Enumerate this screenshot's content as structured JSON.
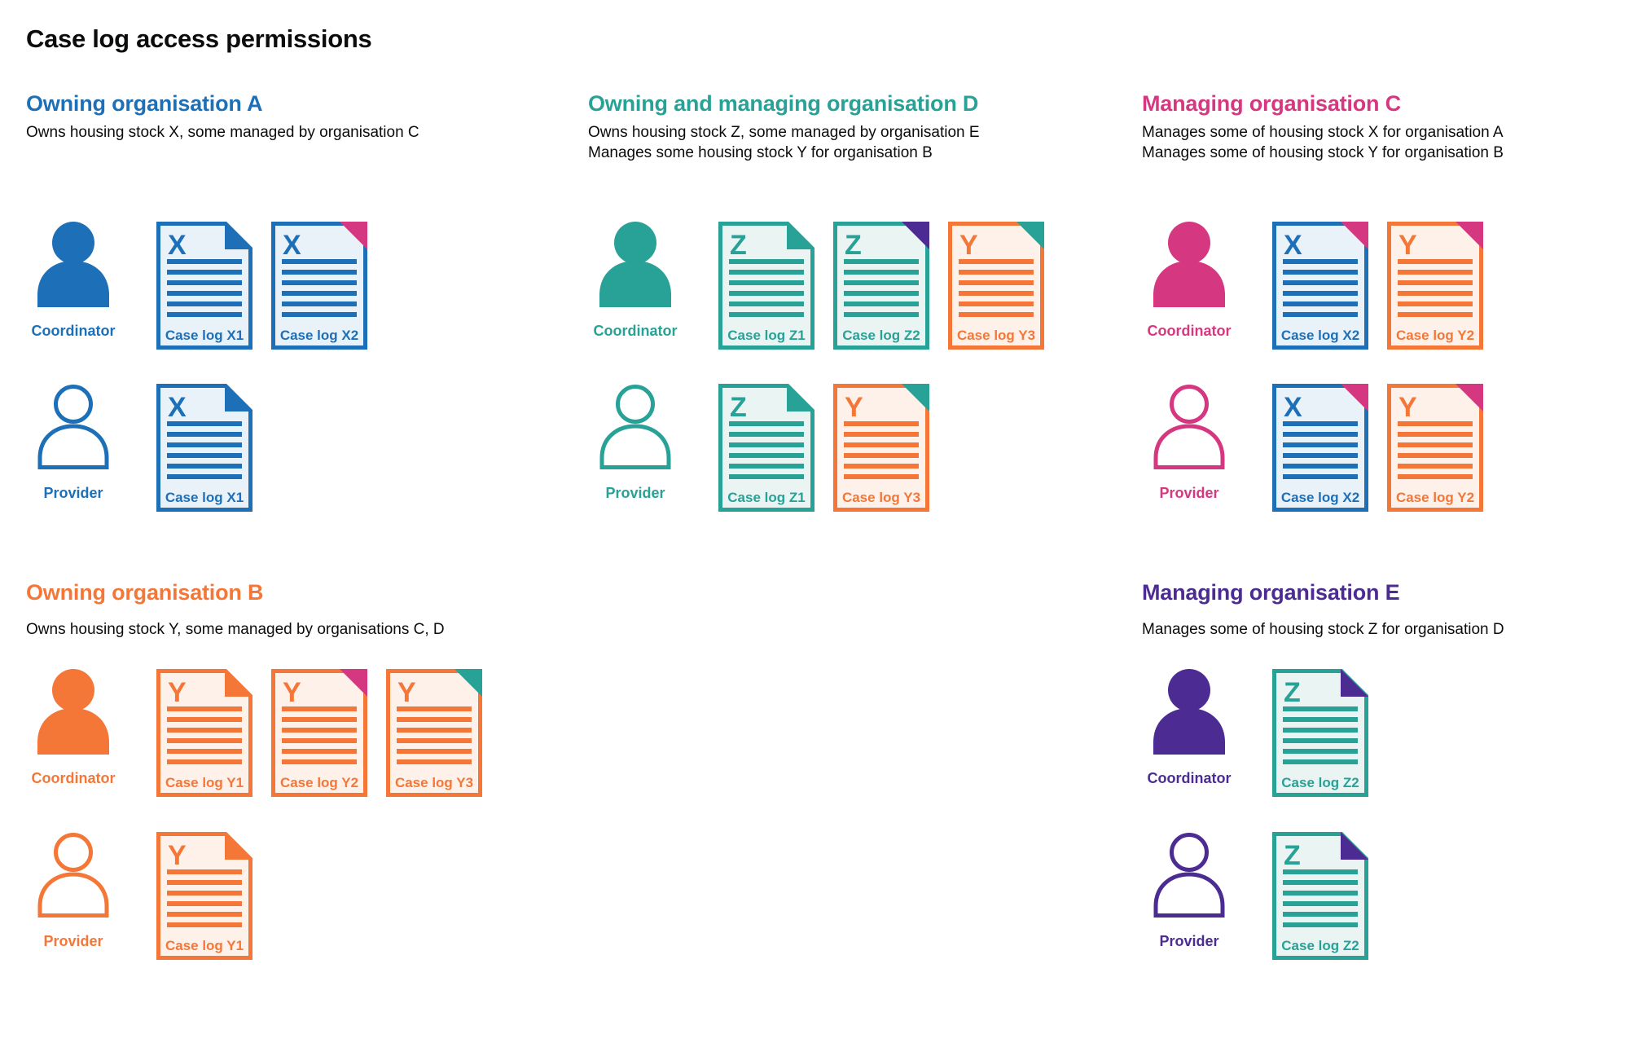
{
  "page": {
    "title": "Case log access permissions"
  },
  "colors": {
    "blue": "#1d70b8",
    "teal": "#28a197",
    "orange": "#f47738",
    "pink": "#d53880",
    "purple": "#4c2c92",
    "text": "#0b0c0c"
  },
  "doc_fills": {
    "blue": "#e9f1f9",
    "teal": "#eaf5f3",
    "orange": "#fdf1e9"
  },
  "sections": [
    {
      "id": "A",
      "title": "Owning organisation A",
      "color": "blue",
      "grid": {
        "col": 0,
        "row": 0
      },
      "description": [
        "Owns housing stock X, some managed by organisation C"
      ],
      "roles": [
        {
          "label": "Coordinator",
          "variant": "filled",
          "docs": [
            {
              "letter": "X",
              "label": "Case log X1",
              "color": "blue",
              "fold_style": "flap",
              "fold_color": "blue"
            },
            {
              "letter": "X",
              "label": "Case log X2",
              "color": "blue",
              "fold_style": "corner",
              "fold_color": "pink"
            }
          ]
        },
        {
          "label": "Provider",
          "variant": "outline",
          "docs": [
            {
              "letter": "X",
              "label": "Case log X1",
              "color": "blue",
              "fold_style": "flap",
              "fold_color": "blue"
            }
          ]
        }
      ]
    },
    {
      "id": "D",
      "title": "Owning and managing organisation D",
      "color": "teal",
      "grid": {
        "col": 1,
        "row": 0
      },
      "description": [
        "Owns housing stock Z, some managed by organisation E",
        "Manages some housing stock Y for organisation B"
      ],
      "roles": [
        {
          "label": "Coordinator",
          "variant": "filled",
          "docs": [
            {
              "letter": "Z",
              "label": "Case log Z1",
              "color": "teal",
              "fold_style": "flap",
              "fold_color": "teal"
            },
            {
              "letter": "Z",
              "label": "Case log Z2",
              "color": "teal",
              "fold_style": "corner",
              "fold_color": "purple"
            },
            {
              "letter": "Y",
              "label": "Case log Y3",
              "color": "orange",
              "fold_style": "corner",
              "fold_color": "teal"
            }
          ]
        },
        {
          "label": "Provider",
          "variant": "outline",
          "docs": [
            {
              "letter": "Z",
              "label": "Case log Z1",
              "color": "teal",
              "fold_style": "flap",
              "fold_color": "teal"
            },
            {
              "letter": "Y",
              "label": "Case log Y3",
              "color": "orange",
              "fold_style": "corner",
              "fold_color": "teal"
            }
          ]
        }
      ]
    },
    {
      "id": "C",
      "title": "Managing organisation C",
      "color": "pink",
      "grid": {
        "col": 2,
        "row": 0
      },
      "description": [
        "Manages some of housing stock X for organisation A",
        "Manages some of housing stock Y for organisation B"
      ],
      "roles": [
        {
          "label": "Coordinator",
          "variant": "filled",
          "docs": [
            {
              "letter": "X",
              "label": "Case log X2",
              "color": "blue",
              "fold_style": "corner",
              "fold_color": "pink"
            },
            {
              "letter": "Y",
              "label": "Case log Y2",
              "color": "orange",
              "fold_style": "corner",
              "fold_color": "pink"
            }
          ]
        },
        {
          "label": "Provider",
          "variant": "outline",
          "docs": [
            {
              "letter": "X",
              "label": "Case log X2",
              "color": "blue",
              "fold_style": "corner",
              "fold_color": "pink"
            },
            {
              "letter": "Y",
              "label": "Case log Y2",
              "color": "orange",
              "fold_style": "corner",
              "fold_color": "pink"
            }
          ]
        }
      ]
    },
    {
      "id": "B",
      "title": "Owning organisation B",
      "color": "orange",
      "grid": {
        "col": 0,
        "row": 1
      },
      "description": [
        "Owns housing stock Y, some managed by organisations C, D"
      ],
      "roles": [
        {
          "label": "Coordinator",
          "variant": "filled",
          "docs": [
            {
              "letter": "Y",
              "label": "Case log Y1",
              "color": "orange",
              "fold_style": "flap",
              "fold_color": "orange"
            },
            {
              "letter": "Y",
              "label": "Case log Y2",
              "color": "orange",
              "fold_style": "corner",
              "fold_color": "pink"
            },
            {
              "letter": "Y",
              "label": "Case log Y3",
              "color": "orange",
              "fold_style": "corner",
              "fold_color": "teal"
            }
          ]
        },
        {
          "label": "Provider",
          "variant": "outline",
          "docs": [
            {
              "letter": "Y",
              "label": "Case log Y1",
              "color": "orange",
              "fold_style": "flap",
              "fold_color": "orange"
            }
          ]
        }
      ]
    },
    {
      "id": "E",
      "title": "Managing organisation E",
      "color": "purple",
      "grid": {
        "col": 2,
        "row": 1
      },
      "description": [
        "Manages some of housing stock Z for organisation D"
      ],
      "roles": [
        {
          "label": "Coordinator",
          "variant": "filled",
          "docs": [
            {
              "letter": "Z",
              "label": "Case log Z2",
              "color": "teal",
              "fold_style": "flap",
              "fold_color": "purple"
            }
          ]
        },
        {
          "label": "Provider",
          "variant": "outline",
          "docs": [
            {
              "letter": "Z",
              "label": "Case log Z2",
              "color": "teal",
              "fold_style": "flap",
              "fold_color": "purple"
            }
          ]
        }
      ]
    }
  ]
}
